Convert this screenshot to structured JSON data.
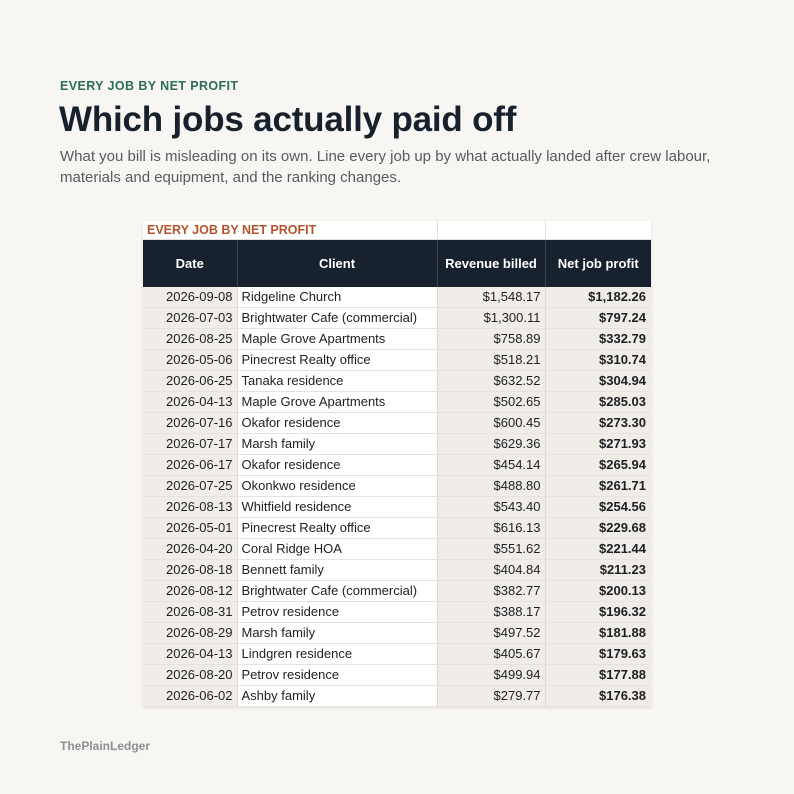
{
  "header": {
    "eyebrow": "EVERY JOB BY NET PROFIT",
    "title": "Which jobs actually paid off",
    "subtitle": "What you bill is misleading on its own. Line every job up by what actually landed after crew labour, materials and equipment, and the ranking changes."
  },
  "sheet": {
    "label": "EVERY JOB BY NET PROFIT",
    "columns": [
      "Date",
      "Client",
      "Revenue billed",
      "Net job profit"
    ],
    "rows": [
      [
        "2026-09-08",
        "Ridgeline Church",
        "$1,548.17",
        "$1,182.26"
      ],
      [
        "2026-07-03",
        "Brightwater Cafe (commercial)",
        "$1,300.11",
        "$797.24"
      ],
      [
        "2026-08-25",
        "Maple Grove Apartments",
        "$758.89",
        "$332.79"
      ],
      [
        "2026-05-06",
        "Pinecrest Realty office",
        "$518.21",
        "$310.74"
      ],
      [
        "2026-06-25",
        "Tanaka residence",
        "$632.52",
        "$304.94"
      ],
      [
        "2026-04-13",
        "Maple Grove Apartments",
        "$502.65",
        "$285.03"
      ],
      [
        "2026-07-16",
        "Okafor residence",
        "$600.45",
        "$273.30"
      ],
      [
        "2026-07-17",
        "Marsh family",
        "$629.36",
        "$271.93"
      ],
      [
        "2026-06-17",
        "Okafor residence",
        "$454.14",
        "$265.94"
      ],
      [
        "2026-07-25",
        "Okonkwo residence",
        "$488.80",
        "$261.71"
      ],
      [
        "2026-08-13",
        "Whitfield residence",
        "$543.40",
        "$254.56"
      ],
      [
        "2026-05-01",
        "Pinecrest Realty office",
        "$616.13",
        "$229.68"
      ],
      [
        "2026-04-20",
        "Coral Ridge HOA",
        "$551.62",
        "$221.44"
      ],
      [
        "2026-08-18",
        "Bennett family",
        "$404.84",
        "$211.23"
      ],
      [
        "2026-08-12",
        "Brightwater Cafe (commercial)",
        "$382.77",
        "$200.13"
      ],
      [
        "2026-08-31",
        "Petrov residence",
        "$388.17",
        "$196.32"
      ],
      [
        "2026-08-29",
        "Marsh family",
        "$497.52",
        "$181.88"
      ],
      [
        "2026-04-13",
        "Lindgren residence",
        "$405.67",
        "$179.63"
      ],
      [
        "2026-08-20",
        "Petrov residence",
        "$499.94",
        "$177.88"
      ],
      [
        "2026-06-02",
        "Ashby family",
        "$279.77",
        "$176.38"
      ]
    ]
  },
  "footer": {
    "brand": "ThePlainLedger"
  },
  "colors": {
    "accent": "#2a6e58",
    "label": "#b4542c",
    "header_bg": "#18222f"
  }
}
